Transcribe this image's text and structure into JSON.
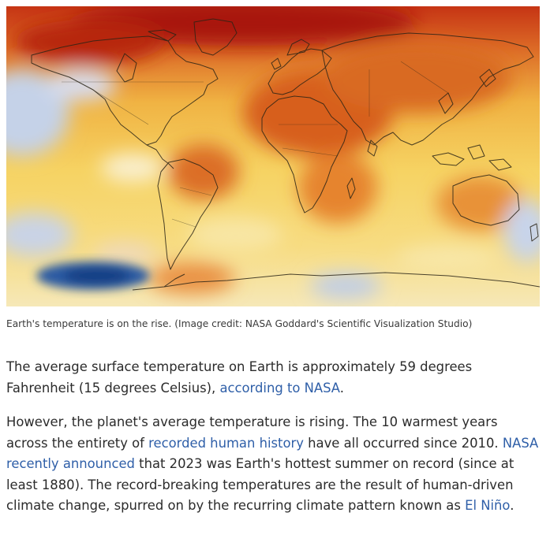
{
  "figure": {
    "alt": "World map showing surface temperature anomalies, warm oranges and reds over most continents and the Arctic, with a few cool blue patches in the Pacific and Southern Ocean",
    "colors": {
      "hot": "#b51f0c",
      "warm": "#e0762a",
      "mild": "#f4cd55",
      "neutral": "#fbf4dd",
      "cool": "#b9c8e4",
      "cold": "#1e4c94",
      "coastline": "#2a2416"
    }
  },
  "caption": "Earth's temperature is on the rise. (Image credit: NASA Goddard's Scientific Visualization Studio)",
  "paragraph1": {
    "text_before": "The average surface temperature on Earth is approximately 59 degrees Fahrenheit (15 degrees Celsius), ",
    "link": "according to NASA",
    "text_after": "."
  },
  "paragraph2": {
    "text_1": "However, the planet's average temperature is rising. The 10 warmest years across the entirety of ",
    "link_1": "recorded human history",
    "text_2": " have all occurred since 2010. ",
    "link_2": "NASA recently announced",
    "text_3": " that 2023 was Earth's hottest summer on record (since at least 1880). The record-breaking temperatures are the result of human-driven climate change, spurred on by the recurring climate pattern known as ",
    "link_3": "El Niño",
    "text_4": "."
  },
  "colors": {
    "link": "#2f5fa8",
    "body_text": "#2b2b2b",
    "caption_text": "#3a3a3a"
  }
}
